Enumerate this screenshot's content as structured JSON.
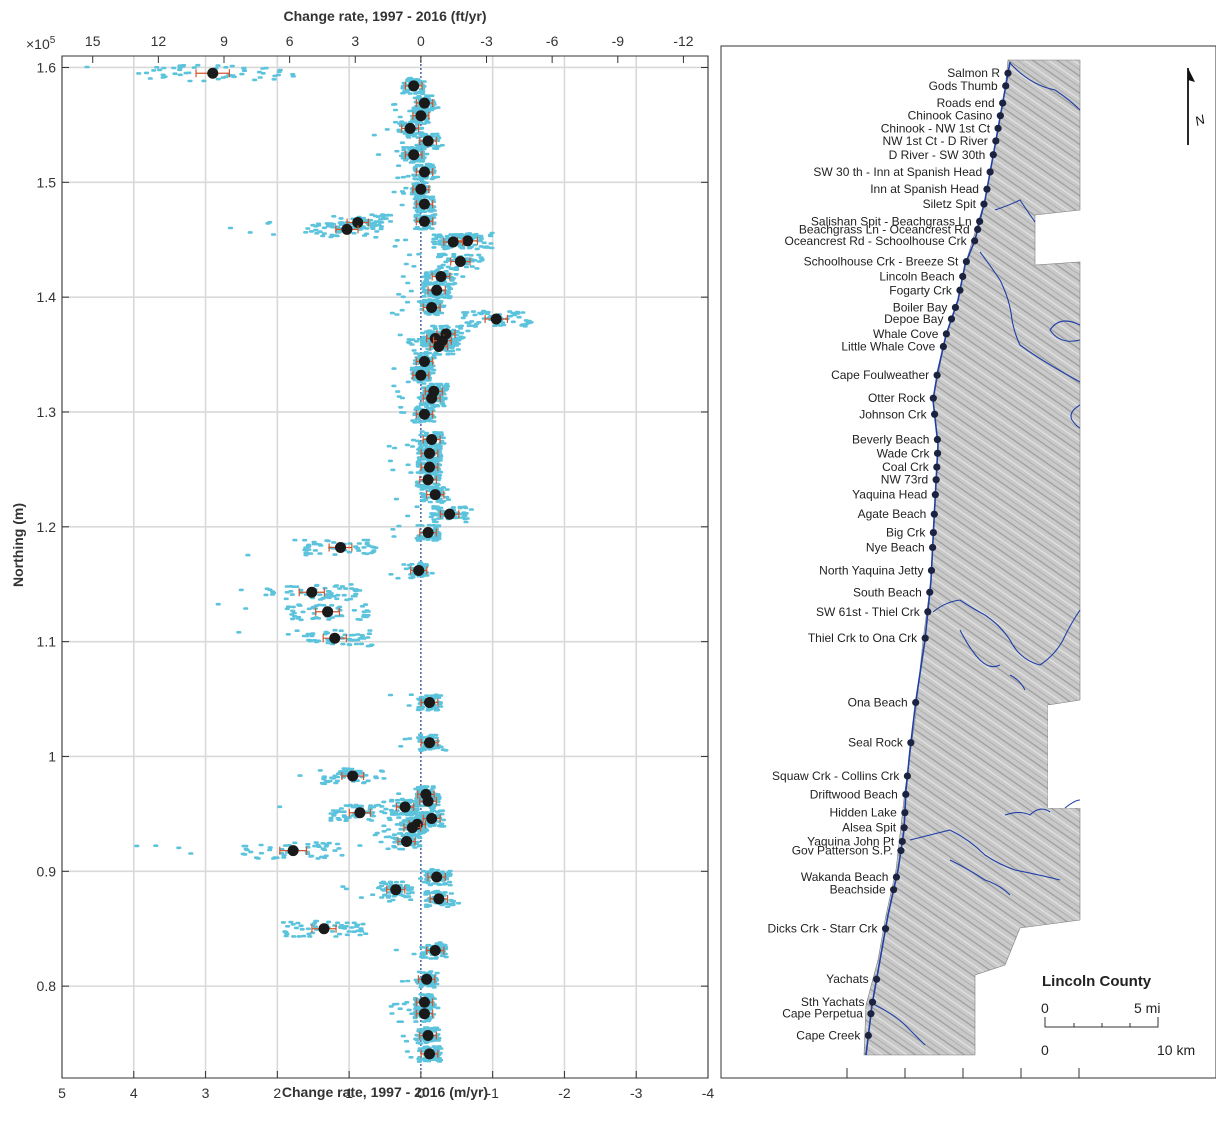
{
  "chart_data": [
    {
      "type": "scatter",
      "title": "",
      "xlabel": "Change rate, 1997 - 2016 (m/yr)",
      "x2label": "Change rate, 1997 - 2016 (ft/yr)",
      "ylabel": "Northing (m)",
      "y_exponent": "×10",
      "y_exponent_power": "5",
      "xlim": [
        5,
        -4
      ],
      "x_reversed": true,
      "ylim": [
        0.72,
        1.61
      ],
      "grid": true,
      "xticks": [
        5,
        4,
        3,
        2,
        1,
        0,
        -1,
        -2,
        -3,
        -4
      ],
      "xtick_labels": [
        "5",
        "4",
        "3",
        "2",
        "1",
        "0",
        "-1",
        "-2",
        "-3",
        "-4"
      ],
      "x2ticks_ft": [
        15,
        12,
        9,
        6,
        3,
        0,
        -3,
        -6,
        -9,
        -12
      ],
      "x2tick_labels": [
        "15",
        "12",
        "9",
        "6",
        "3",
        "0",
        "-3",
        "-6",
        "-9",
        "-12"
      ],
      "yticks": [
        0.8,
        0.9,
        1.0,
        1.1,
        1.2,
        1.3,
        1.4,
        1.5,
        1.6
      ],
      "ytick_labels": [
        "0.8",
        "0.9",
        "1",
        "1.1",
        "1.2",
        "1.3",
        "1.4",
        "1.5",
        "1.6"
      ],
      "zero_line_color": "#1f3a93",
      "colors": {
        "transects": "#5bc3dc",
        "mean": "#1a1a1a",
        "error": "#d2542c"
      },
      "mean_rates": {
        "northing": [
          1.595,
          1.584,
          1.569,
          1.558,
          1.547,
          1.536,
          1.524,
          1.509,
          1.494,
          1.481,
          1.466,
          1.465,
          1.459,
          1.449,
          1.448,
          1.431,
          1.418,
          1.406,
          1.391,
          1.381,
          1.368,
          1.364,
          1.362,
          1.357,
          1.344,
          1.332,
          1.318,
          1.312,
          1.298,
          1.276,
          1.264,
          1.252,
          1.241,
          1.228,
          1.211,
          1.195,
          1.182,
          1.162,
          1.143,
          1.126,
          1.103,
          1.047,
          1.012,
          0.983,
          0.967,
          0.961,
          0.956,
          0.951,
          0.946,
          0.941,
          0.938,
          0.926,
          0.918,
          0.895,
          0.884,
          0.876,
          0.85,
          0.831,
          0.806,
          0.786,
          0.776,
          0.757,
          0.741
        ],
        "rate": [
          2.9,
          0.1,
          -0.05,
          0.0,
          0.15,
          -0.1,
          0.1,
          -0.05,
          0.0,
          -0.05,
          -0.05,
          0.88,
          1.03,
          -0.65,
          -0.45,
          -0.55,
          -0.28,
          -0.22,
          -0.15,
          -1.05,
          -0.35,
          -0.2,
          -0.3,
          -0.25,
          -0.05,
          0.0,
          -0.18,
          -0.15,
          -0.05,
          -0.15,
          -0.12,
          -0.12,
          -0.1,
          -0.2,
          -0.4,
          -0.1,
          1.12,
          0.03,
          1.52,
          1.3,
          1.2,
          -0.12,
          -0.12,
          0.95,
          -0.07,
          -0.1,
          0.22,
          0.85,
          -0.15,
          0.05,
          0.12,
          0.2,
          1.78,
          -0.22,
          0.35,
          -0.25,
          1.35,
          -0.2,
          -0.08,
          -0.05,
          -0.05,
          -0.1,
          -0.12
        ]
      },
      "transect_rates_note": ""
    },
    {
      "type": "map",
      "title": "Lincoln County",
      "scale_upper_labels": [
        "0",
        "5 mi"
      ],
      "scale_lower_labels": [
        "0",
        "10 km"
      ],
      "north_arrow": "N",
      "places": [
        {
          "name": "Salmon R",
          "northing": 1.595
        },
        {
          "name": "Gods Thumb",
          "northing": 1.584
        },
        {
          "name": "Roads end",
          "northing": 1.569
        },
        {
          "name": "Chinook Casino",
          "northing": 1.558
        },
        {
          "name": "Chinook - NW 1st Ct",
          "northing": 1.547
        },
        {
          "name": "NW 1st Ct - D River",
          "northing": 1.536
        },
        {
          "name": "D River - SW 30th",
          "northing": 1.524
        },
        {
          "name": "SW 30 th - Inn at Spanish Head",
          "northing": 1.509
        },
        {
          "name": "Inn at Spanish Head",
          "northing": 1.494
        },
        {
          "name": "Siletz Spit",
          "northing": 1.481
        },
        {
          "name": "Salishan Spit - Beachgrass Ln",
          "northing": 1.466
        },
        {
          "name": "Beachgrass Ln - Oceancrest Rd",
          "northing": 1.459
        },
        {
          "name": "Oceancrest Rd - Schoolhouse Crk",
          "northing": 1.449
        },
        {
          "name": "Schoolhouse Crk - Breeze St",
          "northing": 1.431
        },
        {
          "name": "Lincoln Beach",
          "northing": 1.418
        },
        {
          "name": "Fogarty Crk",
          "northing": 1.406
        },
        {
          "name": "Boiler Bay",
          "northing": 1.391
        },
        {
          "name": "Depoe Bay",
          "northing": 1.381
        },
        {
          "name": "Whale Cove",
          "northing": 1.368
        },
        {
          "name": "Little Whale Cove",
          "northing": 1.357
        },
        {
          "name": "Cape Foulweather",
          "northing": 1.332
        },
        {
          "name": "Otter Rock",
          "northing": 1.312
        },
        {
          "name": "Johnson Crk",
          "northing": 1.298
        },
        {
          "name": "Beverly Beach",
          "northing": 1.276
        },
        {
          "name": "Wade Crk",
          "northing": 1.264
        },
        {
          "name": "Coal Crk",
          "northing": 1.252
        },
        {
          "name": "NW 73rd",
          "northing": 1.241
        },
        {
          "name": "Yaquina Head",
          "northing": 1.228
        },
        {
          "name": "Agate Beach",
          "northing": 1.211
        },
        {
          "name": "Big Crk",
          "northing": 1.195
        },
        {
          "name": "Nye Beach",
          "northing": 1.182
        },
        {
          "name": "North Yaquina Jetty",
          "northing": 1.162
        },
        {
          "name": "South Beach",
          "northing": 1.143
        },
        {
          "name": "SW 61st - Thiel Crk",
          "northing": 1.126
        },
        {
          "name": "Thiel Crk to Ona Crk",
          "northing": 1.103
        },
        {
          "name": "Ona Beach",
          "northing": 1.047
        },
        {
          "name": "Seal Rock",
          "northing": 1.012
        },
        {
          "name": "Squaw Crk - Collins Crk",
          "northing": 0.983
        },
        {
          "name": "Driftwood Beach",
          "northing": 0.967
        },
        {
          "name": "Hidden Lake",
          "northing": 0.951
        },
        {
          "name": "Alsea Spit",
          "northing": 0.938
        },
        {
          "name": "Yaquina John Pt",
          "northing": 0.926
        },
        {
          "name": "Gov Patterson S.P.",
          "northing": 0.918
        },
        {
          "name": "Wakanda Beach",
          "northing": 0.895
        },
        {
          "name": "Beachside",
          "northing": 0.884
        },
        {
          "name": "Dicks Crk - Starr Crk",
          "northing": 0.85
        },
        {
          "name": "Yachats",
          "northing": 0.806
        },
        {
          "name": "Sth Yachats",
          "northing": 0.786
        },
        {
          "name": "Cape Perpetua",
          "northing": 0.776
        },
        {
          "name": "Cape Creek",
          "northing": 0.757
        }
      ]
    }
  ]
}
